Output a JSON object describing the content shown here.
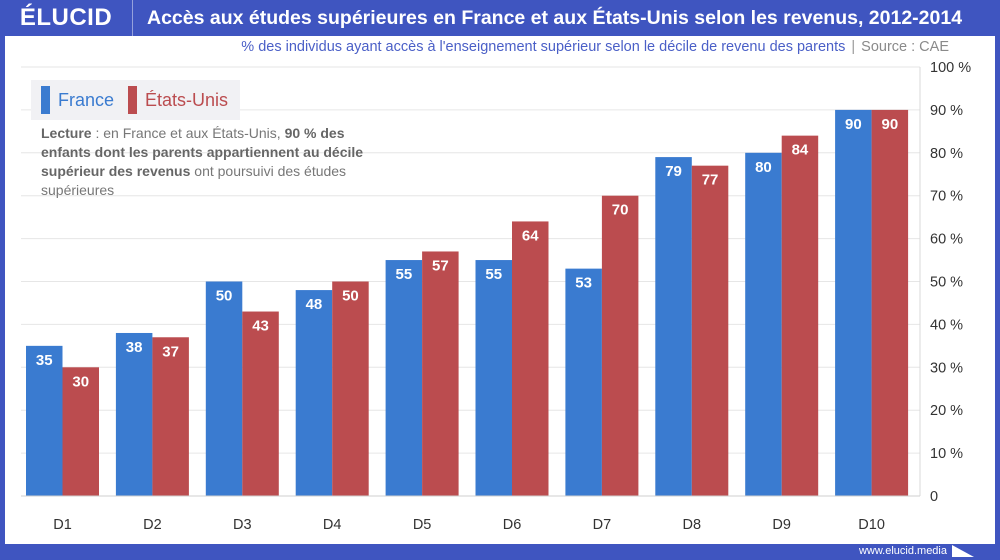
{
  "header": {
    "logo": "ÉLUCID",
    "title": "Accès aux études supérieures en France et aux États-Unis selon les revenus, 2012-2014"
  },
  "subtitle": {
    "text": "% des individus ayant accès à l'enseignement supérieur selon le décile de revenu des parents",
    "separator": "|",
    "source": "Source : CAE"
  },
  "note": {
    "lead": "Lecture",
    "part1": " : en France et aux États-Unis, ",
    "bold": "90 % des enfants dont les parents appartiennent au décile supérieur des revenus",
    "part2": " ont poursuivi des études supérieures"
  },
  "footer": {
    "url": "www.elucid.media"
  },
  "colors": {
    "france": "#3a7bd0",
    "usa": "#bb4c4f",
    "brand": "#3f55c0"
  },
  "chart_data": {
    "type": "bar",
    "title": "Accès aux études supérieures en France et aux États-Unis selon les revenus, 2012-2014",
    "subtitle": "% des individus ayant accès à l'enseignement supérieur selon le décile de revenu des parents",
    "xlabel": "",
    "ylabel": "",
    "categories": [
      "D1",
      "D2",
      "D3",
      "D4",
      "D5",
      "D6",
      "D7",
      "D8",
      "D9",
      "D10"
    ],
    "series": [
      {
        "name": "France",
        "color": "#3a7bd0",
        "values": [
          35,
          38,
          50,
          48,
          55,
          55,
          53,
          79,
          80,
          90
        ]
      },
      {
        "name": "États-Unis",
        "color": "#bb4c4f",
        "values": [
          30,
          37,
          43,
          50,
          57,
          64,
          70,
          77,
          84,
          90
        ]
      }
    ],
    "ylim": [
      0,
      100
    ],
    "yticks": [
      0,
      10,
      20,
      30,
      40,
      50,
      60,
      70,
      80,
      90,
      100
    ],
    "ytick_labels": [
      "0",
      "10 %",
      "20 %",
      "30 %",
      "40 %",
      "50 %",
      "60 %",
      "70 %",
      "80 %",
      "90 %",
      "100 %"
    ],
    "y_axis_position": "right",
    "grid": true,
    "data_labels": true,
    "legend": "top-left"
  }
}
